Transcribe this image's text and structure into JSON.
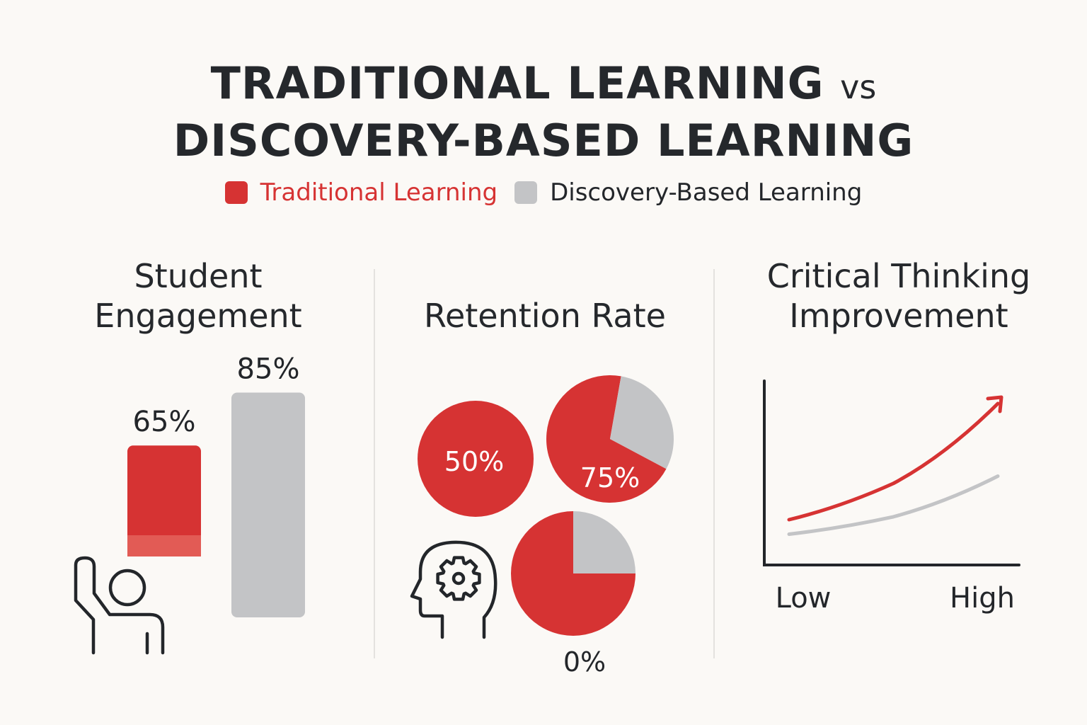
{
  "title": {
    "line1": "TRADITIONAL LEARNING",
    "vs": "vs",
    "line2": "DISCOVERY-BASED LEARNING"
  },
  "legend": [
    {
      "label": "Traditional Learning",
      "color": "#d63333"
    },
    {
      "label": "Discovery-Based Learning",
      "color": "#c3c4c6"
    }
  ],
  "colors": {
    "traditional": "#d63333",
    "traditional_light": "#e25b55",
    "discovery": "#c3c4c6",
    "ink": "#23262a"
  },
  "icons": [
    "raised-hand-student-icon",
    "head-gear-icon"
  ],
  "chart_data": [
    {
      "type": "bar",
      "title_lines": [
        "Student",
        "Engagement"
      ],
      "categories": [
        "Traditional Learning",
        "Discovery-Based Learning"
      ],
      "values": [
        65,
        85
      ],
      "labels": [
        "65%",
        "85%"
      ]
    },
    {
      "type": "pie",
      "title": "Retention Rate",
      "pies": [
        {
          "value": 100,
          "label": "50%"
        },
        {
          "value": 70,
          "label": "75%"
        },
        {
          "value": 75,
          "label": "0%"
        }
      ]
    },
    {
      "type": "line",
      "title_lines": [
        "Critical Thinking",
        "Improvement"
      ],
      "x_ticks": [
        "Low",
        "High"
      ],
      "series": [
        {
          "name": "Traditional Learning",
          "values": [
            0.2,
            0.45,
            1.0
          ],
          "color": "#d63333"
        },
        {
          "name": "Discovery-Based Learning",
          "values": [
            0.1,
            0.22,
            0.5
          ],
          "color": "#c3c4c6"
        }
      ]
    }
  ]
}
